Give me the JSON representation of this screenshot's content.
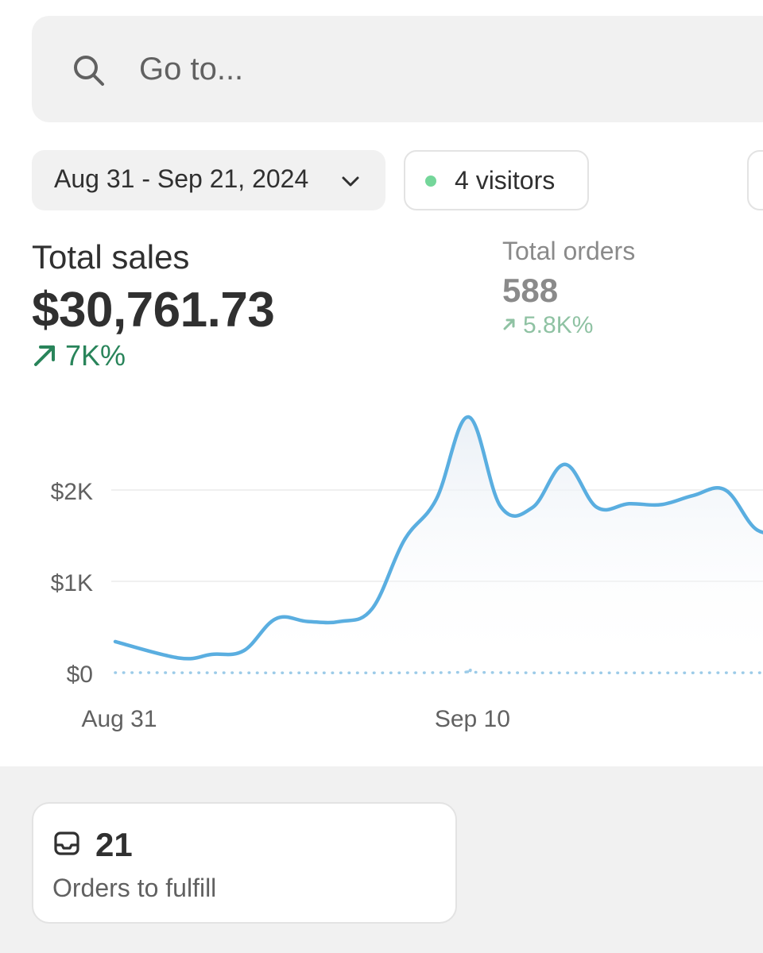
{
  "search": {
    "placeholder": "Go to..."
  },
  "filters": {
    "date_range": "Aug 31 - Sep 21, 2024",
    "visitors": "4 visitors",
    "visitors_dot_color": "#74d69a"
  },
  "metrics": {
    "total_sales": {
      "title": "Total sales",
      "value": "$30,761.73",
      "change": "7K%"
    },
    "total_orders": {
      "title": "Total orders",
      "value": "588",
      "change": "5.8K%"
    }
  },
  "colors": {
    "line": "#5aaee0",
    "positive": "#29845a",
    "positive_muted": "#8fc2a3",
    "comparison": "#9ccbe8"
  },
  "chart_data": {
    "type": "line",
    "y_ticks": [
      "$0",
      "$1K",
      "$2K"
    ],
    "x_ticks": [
      "Aug 31",
      "Sep 10"
    ],
    "ylim": [
      0,
      2800
    ],
    "grid": true,
    "series": [
      {
        "values": [
          {
            "x": "Aug 31",
            "y": 340
          },
          {
            "x": "Sep 1",
            "y": 160
          },
          {
            "x": "Sep 2",
            "y": 200
          },
          {
            "x": "Sep 3",
            "y": 240
          },
          {
            "x": "Sep 4",
            "y": 590
          },
          {
            "x": "Sep 5",
            "y": 560
          },
          {
            "x": "Sep 6",
            "y": 560
          },
          {
            "x": "Sep 7",
            "y": 700
          },
          {
            "x": "Sep 8",
            "y": 1450
          },
          {
            "x": "Sep 9",
            "y": 1900
          },
          {
            "x": "Sep 10",
            "y": 2800
          },
          {
            "x": "Sep 11",
            "y": 1820
          },
          {
            "x": "Sep 12",
            "y": 1810
          },
          {
            "x": "Sep 13",
            "y": 2280
          },
          {
            "x": "Sep 14",
            "y": 1810
          },
          {
            "x": "Sep 15",
            "y": 1850
          },
          {
            "x": "Sep 16",
            "y": 1840
          },
          {
            "x": "Sep 17",
            "y": 1940
          },
          {
            "x": "Sep 18",
            "y": 2000
          },
          {
            "x": "Sep 19",
            "y": 1560
          },
          {
            "x": "Sep 20",
            "y": 1580
          },
          {
            "x": "Sep 21",
            "y": 1590
          }
        ]
      },
      {
        "values": [
          {
            "x": "Aug 31",
            "y": 0
          },
          {
            "x": "Sep 9",
            "y": 0
          },
          {
            "x": "Sep 10",
            "y": 30
          },
          {
            "x": "Sep 11",
            "y": 0
          },
          {
            "x": "Sep 21",
            "y": 0
          }
        ]
      }
    ]
  },
  "fulfill": {
    "count": "21",
    "label": "Orders to fulfill"
  }
}
